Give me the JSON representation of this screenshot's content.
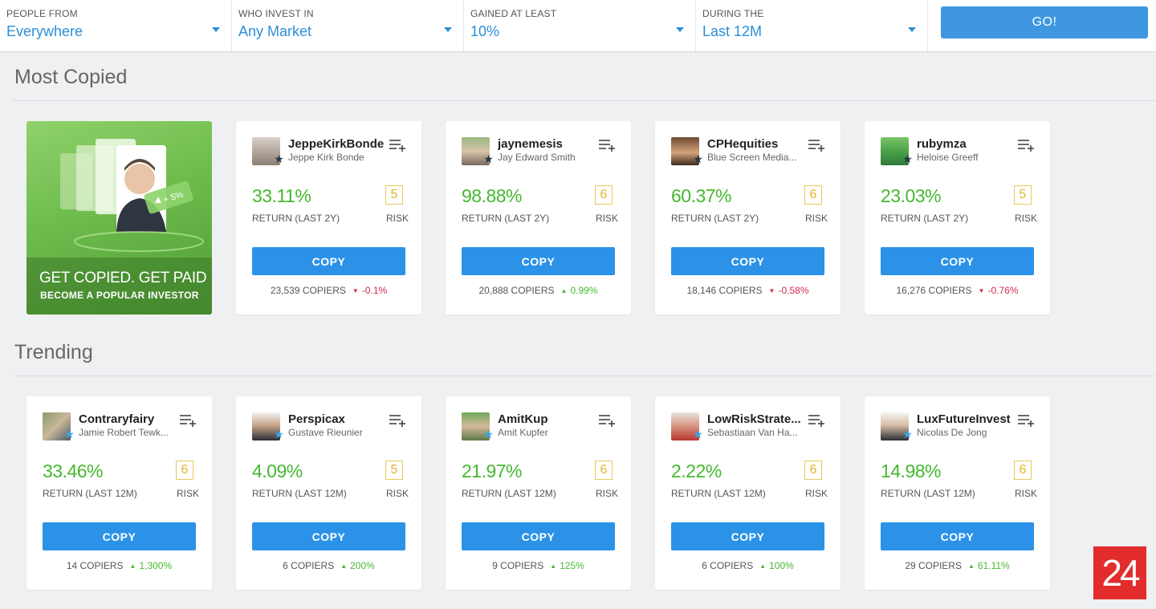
{
  "filters": [
    {
      "label": "PEOPLE FROM",
      "value": "Everywhere"
    },
    {
      "label": "WHO INVEST IN",
      "value": "Any Market"
    },
    {
      "label": "GAINED AT LEAST",
      "value": "10%"
    },
    {
      "label": "DURING THE",
      "value": "Last 12M"
    }
  ],
  "go_label": "GO!",
  "sections": {
    "most_copied": "Most Copied",
    "trending": "Trending"
  },
  "promo": {
    "headline": "GET COPIED. GET PAID",
    "subline": "BECOME A POPULAR INVESTOR",
    "art_label": "+ 5%"
  },
  "colors": {
    "accent_blue": "#2b92e8",
    "positive_green": "#45b82f",
    "negative_red": "#d6294a",
    "risk_yellow": "#e0b52a"
  },
  "most_copied": [
    {
      "username": "JeppeKirkBonde",
      "fullname": "Jeppe Kirk Bonde",
      "return": "33.11%",
      "return_label": "RETURN (LAST 2Y)",
      "risk": "5",
      "risk_label": "RISK",
      "copy_label": "COPY",
      "copiers": "23,539 COPIERS",
      "change": "-0.1%",
      "arrow": "▼",
      "badge": "dark-star-icon"
    },
    {
      "username": "jaynemesis",
      "fullname": "Jay Edward Smith",
      "return": "98.88%",
      "return_label": "RETURN (LAST 2Y)",
      "risk": "6",
      "risk_label": "RISK",
      "copy_label": "COPY",
      "copiers": "20,888 COPIERS",
      "change": "0.99%",
      "arrow": "▲",
      "badge": "dark-star-icon"
    },
    {
      "username": "CPHequities",
      "fullname": "Blue Screen Media...",
      "return": "60.37%",
      "return_label": "RETURN (LAST 2Y)",
      "risk": "6",
      "risk_label": "RISK",
      "copy_label": "COPY",
      "copiers": "18,146 COPIERS",
      "change": "-0.58%",
      "arrow": "▼",
      "badge": "dark-star-icon"
    },
    {
      "username": "rubymza",
      "fullname": "Heloise Greeff",
      "return": "23.03%",
      "return_label": "RETURN (LAST 2Y)",
      "risk": "5",
      "risk_label": "RISK",
      "copy_label": "COPY",
      "copiers": "16,276 COPIERS",
      "change": "-0.76%",
      "arrow": "▼",
      "badge": "dark-star-icon"
    }
  ],
  "trending": [
    {
      "username": "Contraryfairy",
      "fullname": "Jamie Robert Tewk...",
      "return": "33.46%",
      "return_label": "RETURN (LAST 12M)",
      "risk": "6",
      "risk_label": "RISK",
      "copy_label": "COPY",
      "copiers": "14 COPIERS",
      "change": "1,300%",
      "arrow": "▲",
      "badge": "light-star-icon"
    },
    {
      "username": "Perspicax",
      "fullname": "Gustave Rieunier",
      "return": "4.09%",
      "return_label": "RETURN (LAST 12M)",
      "risk": "5",
      "risk_label": "RISK",
      "copy_label": "COPY",
      "copiers": "6 COPIERS",
      "change": "200%",
      "arrow": "▲",
      "badge": "light-star-icon"
    },
    {
      "username": "AmitKup",
      "fullname": "Amit Kupfer",
      "return": "21.97%",
      "return_label": "RETURN (LAST 12M)",
      "risk": "6",
      "risk_label": "RISK",
      "copy_label": "COPY",
      "copiers": "9 COPIERS",
      "change": "125%",
      "arrow": "▲",
      "badge": "light-star-icon"
    },
    {
      "username": "LowRiskStrate...",
      "fullname": "Sebastiaan Van Ha...",
      "return": "2.22%",
      "return_label": "RETURN (LAST 12M)",
      "risk": "6",
      "risk_label": "RISK",
      "copy_label": "COPY",
      "copiers": "6 COPIERS",
      "change": "100%",
      "arrow": "▲",
      "badge": "light-star-icon"
    },
    {
      "username": "LuxFutureInvest",
      "fullname": "Nicolas De Jong",
      "return": "14.98%",
      "return_label": "RETURN (LAST 12M)",
      "risk": "6",
      "risk_label": "RISK",
      "copy_label": "COPY",
      "copiers": "29 COPIERS",
      "change": "61.11%",
      "arrow": "▲",
      "badge": "light-star-icon"
    }
  ],
  "watermark": "24"
}
